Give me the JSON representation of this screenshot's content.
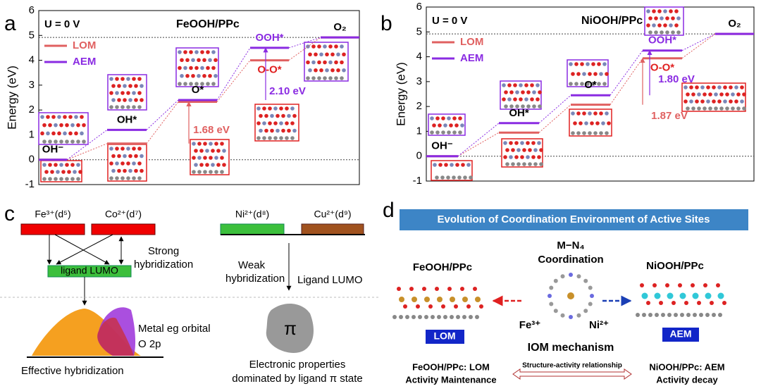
{
  "panel_a": {
    "label": "a",
    "condition": "U = 0 V",
    "title": "FeOOH/PPc",
    "y_label": "Energy (eV)",
    "ylim": [
      -1,
      6
    ],
    "yticks": [
      -1,
      0,
      1,
      2,
      3,
      4,
      5,
      6
    ],
    "series": [
      {
        "name": "LOM",
        "color": "#e06060",
        "values": [
          0,
          0.65,
          2.33,
          4.0,
          4.92
        ]
      },
      {
        "name": "AEM",
        "color": "#8a2be2",
        "values": [
          0,
          1.2,
          2.4,
          4.5,
          4.92
        ]
      }
    ],
    "step_labels": [
      "OH⁻",
      "OH*",
      "O*",
      "OOH*",
      "O-O*",
      "O₂"
    ],
    "annotations": [
      "1.68 eV",
      "2.10 eV"
    ]
  },
  "panel_b": {
    "label": "b",
    "condition": "U = 0 V",
    "title": "NiOOH/PPc",
    "y_label": "Energy (eV)",
    "ylim": [
      -1,
      6
    ],
    "yticks": [
      -1,
      0,
      1,
      2,
      3,
      4,
      5,
      6
    ],
    "series": [
      {
        "name": "LOM",
        "color": "#e06060",
        "values": [
          0,
          0.95,
          2.07,
          3.94,
          4.92
        ]
      },
      {
        "name": "AEM",
        "color": "#8a2be2",
        "values": [
          0,
          1.33,
          2.45,
          4.25,
          4.92
        ]
      }
    ],
    "step_labels": [
      "OH⁻",
      "OH*",
      "O*",
      "OOH*",
      "O-O*",
      "O₂"
    ],
    "annotations": [
      "1.80 eV",
      "1.87 eV"
    ]
  },
  "panel_c": {
    "label": "c",
    "fe": "Fe³⁺(d⁵)",
    "co": "Co²⁺(d⁷)",
    "strong_hybridization": [
      "Strong",
      "hybridization"
    ],
    "ligand_lumo_box": "ligand LUMO",
    "metal_orbital": "Metal eg orbital",
    "o2p": "O 2p",
    "effective": "Effective hybridization",
    "ni": "Ni²⁺(d⁸)",
    "cu": "Cu²⁺(d⁹)",
    "weak_hybridization": [
      "Weak",
      "hybridization"
    ],
    "ligand_lumo": "Ligand LUMO",
    "pi": "π",
    "electronic": [
      "Electronic properties",
      "dominated by ligand π state"
    ]
  },
  "panel_d": {
    "label": "d",
    "banner": "Evolution of Coordination Environment of Active Sites",
    "left_title": "FeOOH/PPc",
    "center_title": [
      "M−N₄",
      "Coordination"
    ],
    "right_title": "NiOOH/PPc",
    "lom": "LOM",
    "aem": "AEM",
    "fe": "Fe³⁺",
    "ni": "Ni²⁺",
    "iom": "IOM mechanism",
    "left_note": [
      "FeOOH/PPc: LOM",
      "Activity Maintenance"
    ],
    "relationship": "Structure-activity relationship",
    "right_note": [
      "NiOOH/PPc: AEM",
      "Activity decay"
    ]
  }
}
